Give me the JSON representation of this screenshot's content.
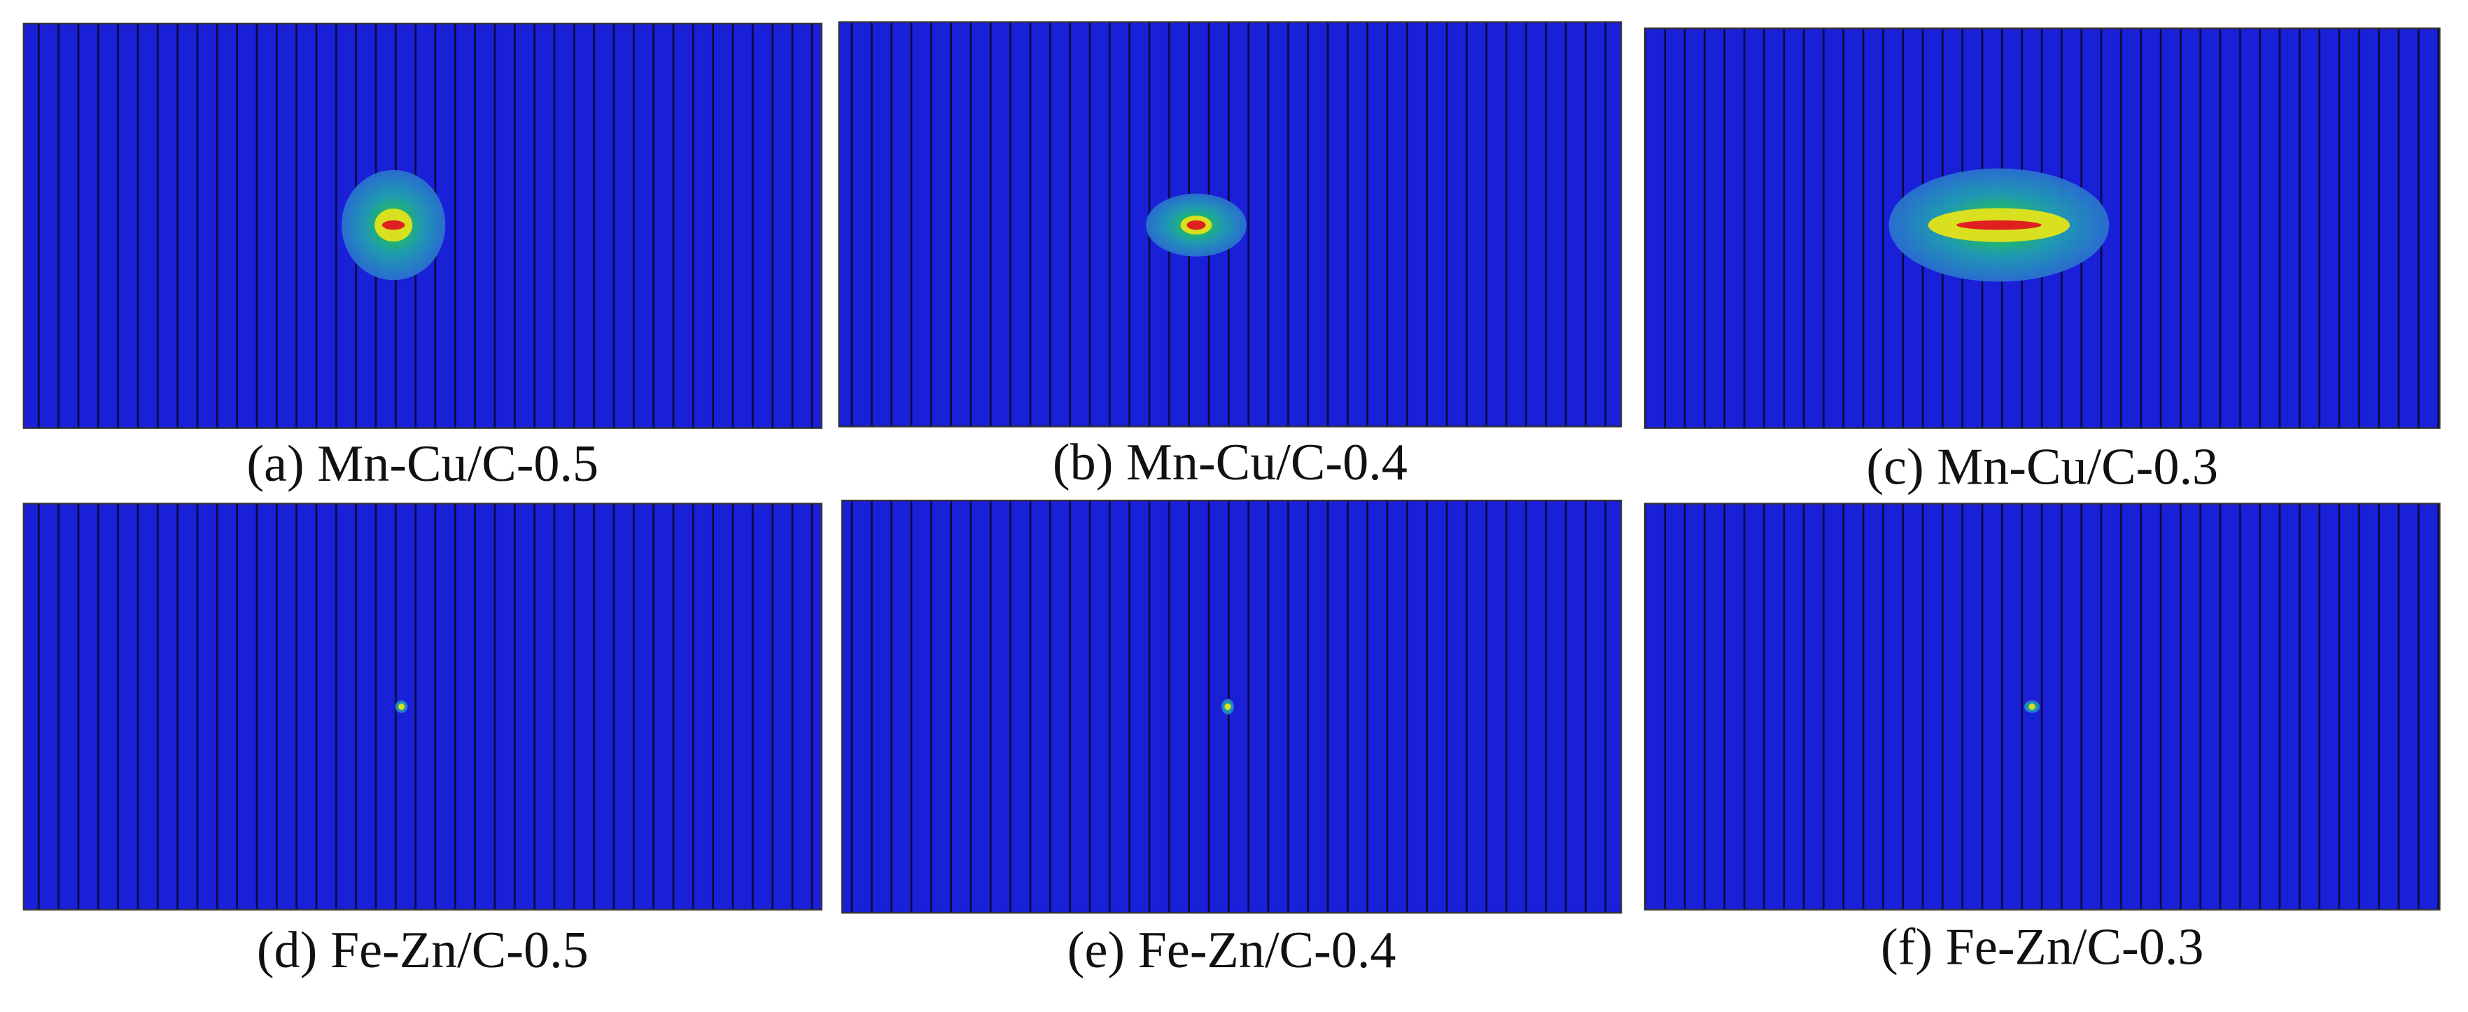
{
  "panels": [
    {
      "label": "(a) Mn-Cu/C-0.5"
    },
    {
      "label": "(b) Mn-Cu/C-0.4"
    },
    {
      "label": "(c) Mn-Cu/C-0.3"
    },
    {
      "label": "(d) Fe-Zn/C-0.5"
    },
    {
      "label": "(e) Fe-Zn/C-0.4"
    },
    {
      "label": "(f) Fe-Zn/C-0.3"
    }
  ]
}
